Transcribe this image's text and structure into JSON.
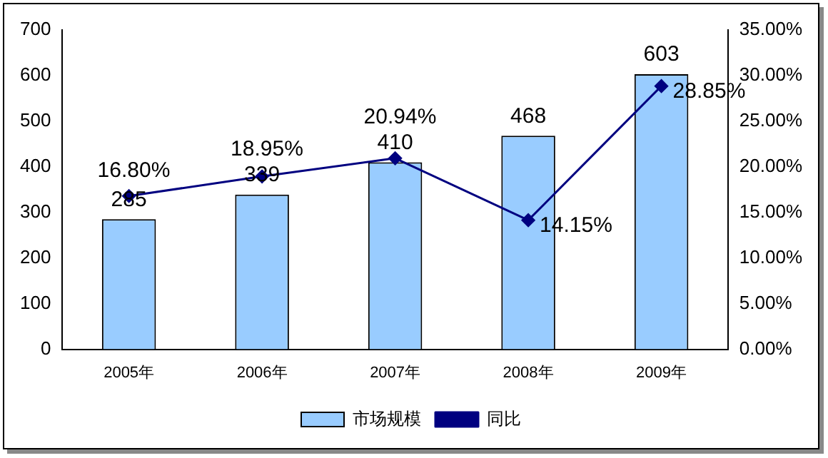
{
  "chart_data": {
    "type": "bar",
    "categories": [
      "2005年",
      "2006年",
      "2007年",
      "2008年",
      "2009年"
    ],
    "series": [
      {
        "name": "市场规模",
        "color": "#99ccff",
        "values": [
          285,
          339,
          410,
          468,
          603
        ],
        "value_labels": [
          "285",
          "339",
          "410",
          "468",
          "603"
        ]
      },
      {
        "name": "同比",
        "type": "line",
        "axis": "y2",
        "color": "#000080",
        "values": [
          16.8,
          18.95,
          20.94,
          14.15,
          28.85
        ],
        "value_labels": [
          "16.80%",
          "18.95%",
          "20.94%",
          "14.15%",
          "28.85%"
        ]
      }
    ],
    "ylim": [
      0,
      700
    ],
    "yticks": [
      0,
      100,
      200,
      300,
      400,
      500,
      600,
      700
    ],
    "y2lim": [
      0,
      35
    ],
    "y2ticks": [
      {
        "value": 0,
        "label": "0.00%"
      },
      {
        "value": 5,
        "label": "5.00%"
      },
      {
        "value": 10,
        "label": "10.00%"
      },
      {
        "value": 15,
        "label": "15.00%"
      },
      {
        "value": 20,
        "label": "20.00%"
      },
      {
        "value": 25,
        "label": "25.00%"
      },
      {
        "value": 30,
        "label": "30.00%"
      },
      {
        "value": 35,
        "label": "35.00%"
      }
    ],
    "grid": false,
    "legend": "bottom",
    "marker": "diamond",
    "line_style": "solid"
  }
}
